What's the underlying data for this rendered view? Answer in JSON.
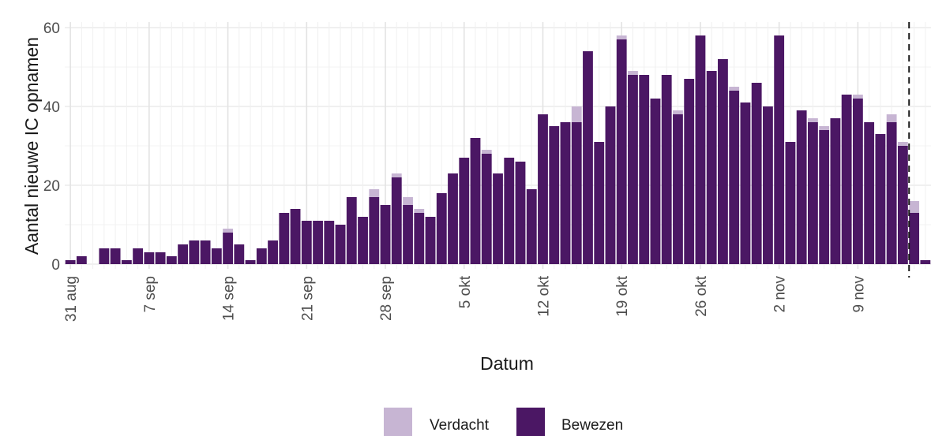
{
  "chart_data": {
    "type": "bar",
    "stacked": true,
    "xlabel": "Datum",
    "ylabel": "Aantal nieuwe IC opnamen",
    "ylim": [
      0,
      60
    ],
    "yticks": [
      0,
      20,
      40,
      60
    ],
    "grid": true,
    "legend_position": "bottom",
    "x": [
      "2020-08-31",
      "2020-09-01",
      "2020-09-02",
      "2020-09-03",
      "2020-09-04",
      "2020-09-05",
      "2020-09-06",
      "2020-09-07",
      "2020-09-08",
      "2020-09-09",
      "2020-09-10",
      "2020-09-11",
      "2020-09-12",
      "2020-09-13",
      "2020-09-14",
      "2020-09-15",
      "2020-09-16",
      "2020-09-17",
      "2020-09-18",
      "2020-09-19",
      "2020-09-20",
      "2020-09-21",
      "2020-09-22",
      "2020-09-23",
      "2020-09-24",
      "2020-09-25",
      "2020-09-26",
      "2020-09-27",
      "2020-09-28",
      "2020-09-29",
      "2020-09-30",
      "2020-10-01",
      "2020-10-02",
      "2020-10-03",
      "2020-10-04",
      "2020-10-05",
      "2020-10-06",
      "2020-10-07",
      "2020-10-08",
      "2020-10-09",
      "2020-10-10",
      "2020-10-11",
      "2020-10-12",
      "2020-10-13",
      "2020-10-14",
      "2020-10-15",
      "2020-10-16",
      "2020-10-17",
      "2020-10-18",
      "2020-10-19",
      "2020-10-20",
      "2020-10-21",
      "2020-10-22",
      "2020-10-23",
      "2020-10-24",
      "2020-10-25",
      "2020-10-26",
      "2020-10-27",
      "2020-10-28",
      "2020-10-29",
      "2020-10-30",
      "2020-10-31",
      "2020-11-01",
      "2020-11-02",
      "2020-11-03",
      "2020-11-04",
      "2020-11-05",
      "2020-11-06",
      "2020-11-07",
      "2020-11-08",
      "2020-11-09",
      "2020-11-10",
      "2020-11-11",
      "2020-11-12",
      "2020-11-13",
      "2020-11-14",
      "2020-11-15"
    ],
    "series": [
      {
        "name": "Bewezen",
        "color": "#4b1764",
        "values": [
          1,
          2,
          0,
          4,
          4,
          1,
          4,
          3,
          3,
          2,
          5,
          6,
          6,
          4,
          8,
          5,
          1,
          4,
          6,
          13,
          14,
          11,
          11,
          11,
          10,
          17,
          12,
          17,
          15,
          22,
          15,
          13,
          12,
          18,
          23,
          27,
          32,
          28,
          23,
          27,
          26,
          19,
          38,
          35,
          36,
          36,
          54,
          31,
          40,
          57,
          48,
          48,
          42,
          48,
          38,
          47,
          58,
          49,
          52,
          44,
          41,
          46,
          40,
          58,
          31,
          39,
          36,
          34,
          37,
          43,
          42,
          36,
          33,
          36,
          30,
          13,
          1
        ]
      },
      {
        "name": "Verdacht",
        "color": "#c7b5d3",
        "values": [
          0,
          0,
          0,
          0,
          0,
          0,
          0,
          0,
          0,
          0,
          0,
          0,
          0,
          0,
          1,
          0,
          0,
          0,
          0,
          0,
          0,
          0,
          0,
          0,
          0,
          0,
          0,
          2,
          0,
          1,
          2,
          1,
          0,
          0,
          0,
          0,
          0,
          1,
          0,
          0,
          0,
          0,
          0,
          0,
          0,
          4,
          0,
          0,
          0,
          1,
          1,
          0,
          0,
          0,
          1,
          0,
          0,
          0,
          0,
          1,
          0,
          0,
          0,
          0,
          0,
          0,
          1,
          1,
          0,
          0,
          1,
          0,
          0,
          2,
          1,
          3,
          0
        ]
      }
    ],
    "x_tick_dates": [
      "2020-08-31",
      "2020-09-07",
      "2020-09-14",
      "2020-09-21",
      "2020-09-28",
      "2020-10-05",
      "2020-10-12",
      "2020-10-19",
      "2020-10-26",
      "2020-11-02",
      "2020-11-09"
    ],
    "x_tick_labels": [
      "31 aug",
      "7 sep",
      "14 sep",
      "21 sep",
      "28 sep",
      "5 okt",
      "12 okt",
      "19 okt",
      "26 okt",
      "2 nov",
      "9 nov"
    ],
    "y_tick_labels": [
      "0",
      "20",
      "40",
      "60"
    ],
    "reference_line_date": "2020-11-14",
    "legend": [
      {
        "label": "Verdacht",
        "color": "#c7b5d3"
      },
      {
        "label": "Bewezen",
        "color": "#4b1764"
      }
    ]
  }
}
